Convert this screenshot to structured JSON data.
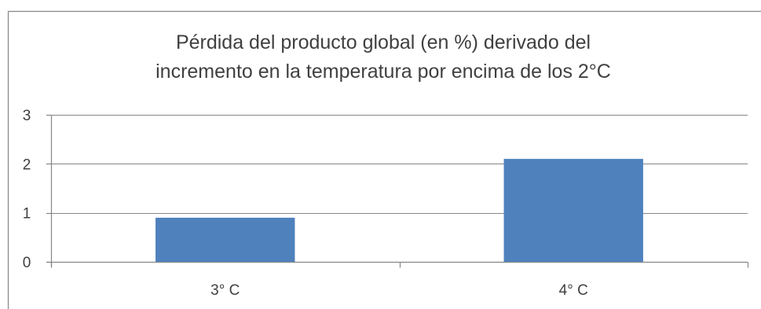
{
  "chart_data": {
    "type": "bar",
    "title_lines": [
      "Pérdida del producto global (en %) derivado del",
      "incremento en la temperatura por encima de los 2°C"
    ],
    "categories": [
      "3° C",
      "4° C"
    ],
    "values": [
      0.9,
      2.1
    ],
    "ylim": [
      0,
      3
    ],
    "yticks": [
      0,
      1,
      2,
      3
    ],
    "grid": true,
    "legend": "none",
    "bar_color": "#4f81bd",
    "grid_color": "#868686",
    "text_color": "#404040"
  }
}
